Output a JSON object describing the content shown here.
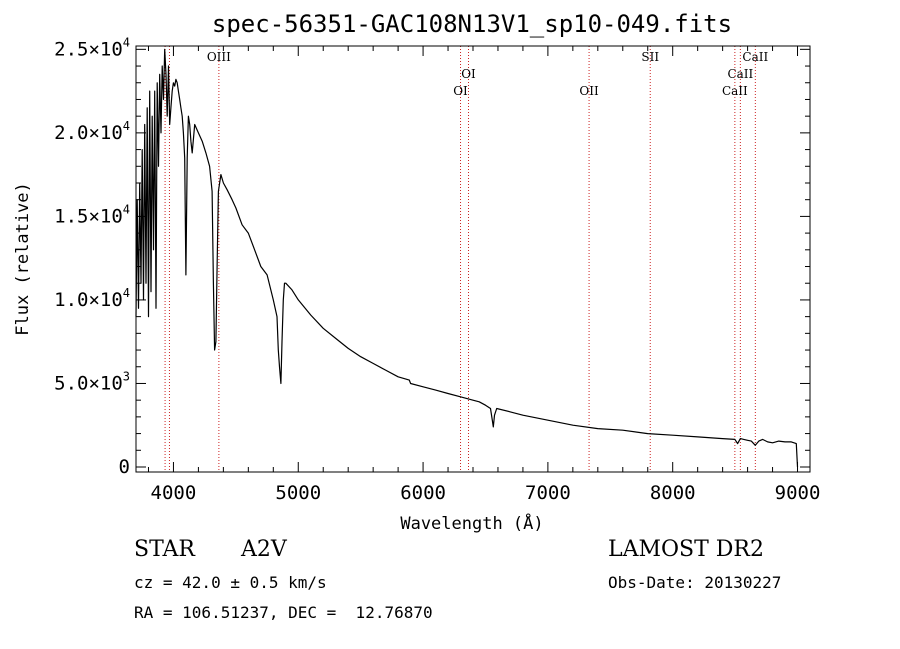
{
  "chart_data": {
    "type": "line",
    "title": "spec-56351-GAC108N13V1_sp10-049.fits",
    "xlabel": "Wavelength (Å)",
    "ylabel": "Flux (relative)",
    "xlim": [
      3700,
      9100
    ],
    "ylim": [
      -300,
      25200
    ],
    "x_ticks": [
      4000,
      5000,
      6000,
      7000,
      8000,
      9000
    ],
    "x_tick_labels": [
      "4000",
      "5000",
      "6000",
      "7000",
      "8000",
      "9000"
    ],
    "y_ticks": [
      0,
      5000,
      10000,
      15000,
      20000,
      25000
    ],
    "y_tick_labels": [
      {
        "mant": "0",
        "exp": ""
      },
      {
        "mant": "5.0×10",
        "exp": "3"
      },
      {
        "mant": "1.0×10",
        "exp": "4"
      },
      {
        "mant": "1.5×10",
        "exp": "4"
      },
      {
        "mant": "2.0×10",
        "exp": "4"
      },
      {
        "mant": "2.5×10",
        "exp": "4"
      }
    ],
    "grid": false,
    "series": [
      {
        "color": "#000000",
        "x": [
          3700,
          3710,
          3720,
          3730,
          3740,
          3750,
          3760,
          3770,
          3780,
          3790,
          3800,
          3810,
          3820,
          3830,
          3840,
          3850,
          3860,
          3870,
          3880,
          3890,
          3900,
          3910,
          3920,
          3930,
          3940,
          3950,
          3960,
          3970,
          3980,
          3990,
          4000,
          4010,
          4020,
          4030,
          4040,
          4050,
          4060,
          4070,
          4080,
          4090,
          4100,
          4110,
          4120,
          4130,
          4140,
          4150,
          4170,
          4200,
          4230,
          4260,
          4290,
          4310,
          4320,
          4330,
          4340,
          4350,
          4360,
          4380,
          4400,
          4430,
          4470,
          4500,
          4550,
          4600,
          4650,
          4700,
          4750,
          4800,
          4830,
          4840,
          4850,
          4861,
          4870,
          4880,
          4890,
          4900,
          4950,
          5000,
          5100,
          5200,
          5300,
          5400,
          5500,
          5600,
          5700,
          5800,
          5890,
          5900,
          6000,
          6100,
          6200,
          6300,
          6400,
          6450,
          6500,
          6540,
          6555,
          6563,
          6572,
          6590,
          6700,
          6800,
          7000,
          7200,
          7400,
          7600,
          7800,
          8000,
          8200,
          8400,
          8498,
          8520,
          8542,
          8570,
          8600,
          8630,
          8662,
          8690,
          8720,
          8760,
          8800,
          8850,
          8900,
          8950,
          8990,
          9000
        ],
        "y": [
          9000,
          16000,
          9500,
          17000,
          11000,
          19000,
          10000,
          20500,
          11000,
          21500,
          9000,
          22500,
          10500,
          21000,
          13000,
          22500,
          9500,
          23000,
          18000,
          23500,
          20000,
          24000,
          22000,
          25000,
          23500,
          21000,
          24000,
          20500,
          21500,
          22500,
          23000,
          22800,
          23200,
          23000,
          22500,
          22000,
          21500,
          21000,
          20000,
          18500,
          11500,
          18500,
          21000,
          20500,
          19500,
          18800,
          20500,
          20000,
          19500,
          18800,
          18000,
          16500,
          11000,
          7000,
          7500,
          12000,
          16500,
          17500,
          17000,
          16600,
          16000,
          15500,
          14500,
          14000,
          13000,
          12000,
          11500,
          10000,
          9000,
          7000,
          6000,
          5000,
          7500,
          10000,
          11000,
          11000,
          10600,
          10000,
          9100,
          8300,
          7700,
          7100,
          6600,
          6200,
          5800,
          5400,
          5200,
          5000,
          4800,
          4600,
          4400,
          4200,
          4000,
          3900,
          3700,
          3500,
          2800,
          2400,
          3100,
          3500,
          3300,
          3100,
          2800,
          2500,
          2300,
          2200,
          2000,
          1900,
          1800,
          1700,
          1650,
          1400,
          1700,
          1650,
          1600,
          1550,
          1300,
          1550,
          1650,
          1500,
          1450,
          1550,
          1500,
          1500,
          1400,
          0
        ]
      }
    ],
    "spectral_lines": [
      {
        "label": "OIII",
        "wl": 4364,
        "row": 0
      },
      {
        "label": "OI",
        "wl": 6364,
        "row": 1
      },
      {
        "label": "OI",
        "wl": 6300,
        "row": 2
      },
      {
        "label": "OII",
        "wl": 7330,
        "row": 2
      },
      {
        "label": "SII",
        "wl": 7820,
        "row": 0
      },
      {
        "label": "CaII",
        "wl": 8662,
        "row": 0
      },
      {
        "label": "CaII",
        "wl": 8542,
        "row": 1
      },
      {
        "label": "CaII",
        "wl": 8498,
        "row": 2
      }
    ],
    "extra_marker_lines": [
      3933,
      3968
    ],
    "line_color": "#cc2222"
  },
  "info": {
    "object_type": "STAR",
    "spectral_class": "A2V",
    "survey": "LAMOST DR2",
    "cz_text": "cz = 42.0 ± 0.5 km/s",
    "obs_date": "Obs-Date: 20130227",
    "coords_text": "RA = 106.51237, DEC =  12.76870"
  }
}
